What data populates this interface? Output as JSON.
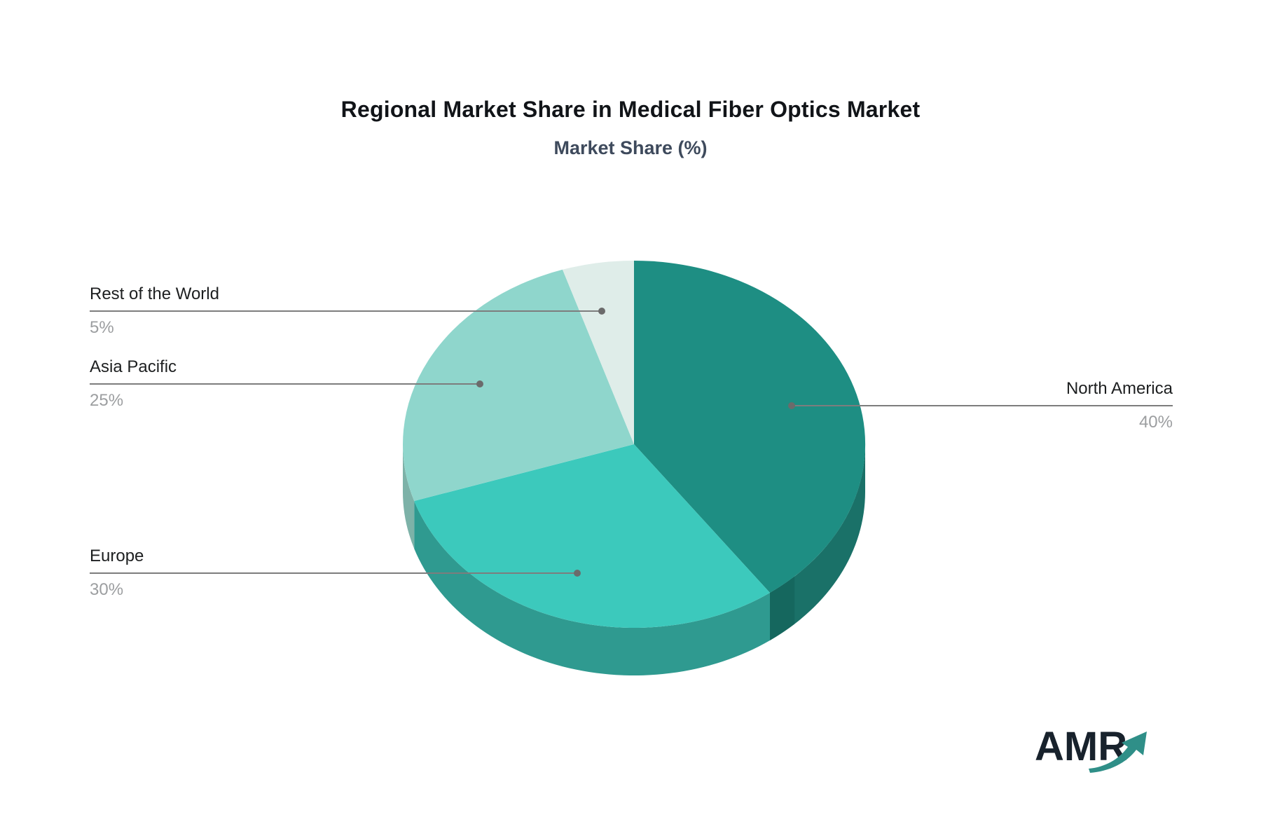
{
  "page": {
    "background": "#ffffff"
  },
  "header": {
    "title": "Regional Market Share in Medical Fiber Optics Market",
    "subtitle": "Market Share (%)"
  },
  "chart_data": {
    "type": "pie",
    "style": "3d",
    "title": "Regional Market Share in Medical Fiber Optics Market",
    "subtitle": "Market Share (%)",
    "unit": "%",
    "direction": "clockwise",
    "start_angle_deg": 0,
    "legend_position": "callout-labels",
    "slices": [
      {
        "label": "North America",
        "value": 40,
        "pct_label": "40%",
        "color": "#1E8E83",
        "rim_color": "#1A7168",
        "edge_color": "#15675E"
      },
      {
        "label": "Europe",
        "value": 30,
        "pct_label": "30%",
        "color": "#3CC9BC",
        "rim_color": "#2F9A90"
      },
      {
        "label": "Asia Pacific",
        "value": 25,
        "pct_label": "25%",
        "color": "#8FD6CC",
        "rim_color": "#7DB2A8"
      },
      {
        "label": "Rest of the World",
        "value": 5,
        "pct_label": "5%",
        "color": "#DFEDE9"
      }
    ]
  },
  "callout_style": {
    "line_color": "#7D7D7D",
    "dot_color": "#6B6B6B",
    "label_color": "#1D1F20",
    "pct_color": "#9C9EA0"
  },
  "logo": {
    "text": "AMR",
    "text_color": "#18222C",
    "arrow_color": "#2F8F88"
  }
}
